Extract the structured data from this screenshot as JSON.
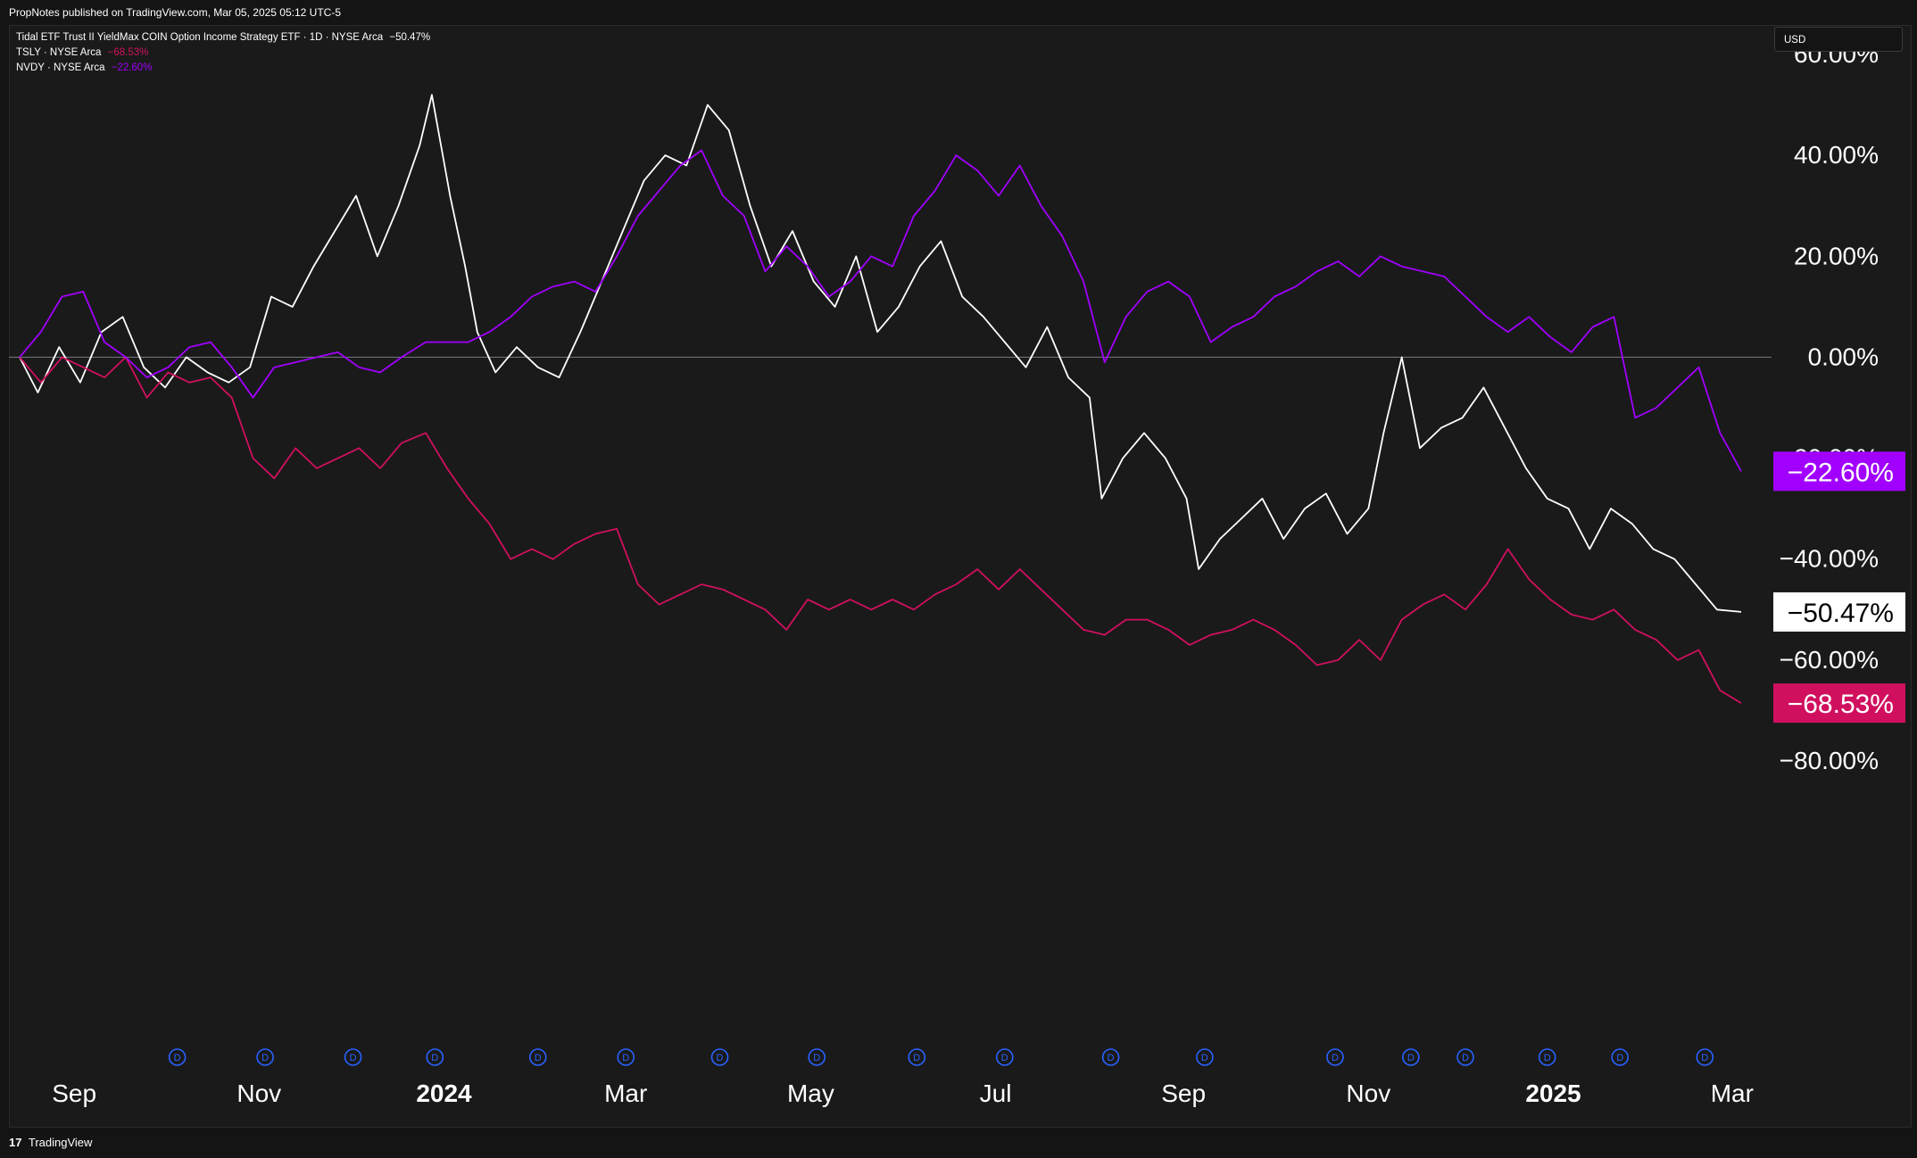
{
  "header": {
    "published_text": "PropNotes published on TradingView.com, Mar 05, 2025 05:12 UTC-5"
  },
  "legend": {
    "main": {
      "label": "Tidal ETF Trust II YieldMax COIN Option Income Strategy ETF · 1D · NYSE Arca",
      "value": "−50.47%"
    },
    "tsly": {
      "label": "TSLY · NYSE Arca",
      "value": "−68.53%"
    },
    "nvdy": {
      "label": "NVDY · NYSE Arca",
      "value": "−22.60%"
    }
  },
  "currency_button": "USD",
  "footer": {
    "logo": "17",
    "brand": "TradingView"
  },
  "colors": {
    "background": "#1a1a1a",
    "cony": "#ffffff",
    "tsly": "#d0105f",
    "nvdy": "#a100ff",
    "zero_line": "#787b86",
    "dividend_marker": "#2962ff"
  },
  "chart_data": {
    "type": "line",
    "y_unit": "percent",
    "ylim": [
      -80,
      60
    ],
    "y_ticks": [
      "60.00%",
      "40.00%",
      "20.00%",
      "0.00%",
      "−20.00%",
      "−40.00%",
      "−60.00%",
      "−80.00%"
    ],
    "y_tick_values": [
      60,
      40,
      20,
      0,
      -20,
      -40,
      -60,
      -80
    ],
    "x_ticks": [
      {
        "label": "Sep",
        "date": "2023-09-01",
        "bold": false
      },
      {
        "label": "Nov",
        "date": "2023-11-01",
        "bold": false
      },
      {
        "label": "2024",
        "date": "2024-01-01",
        "bold": true
      },
      {
        "label": "Mar",
        "date": "2024-03-01",
        "bold": false
      },
      {
        "label": "May",
        "date": "2024-05-01",
        "bold": false
      },
      {
        "label": "Jul",
        "date": "2024-07-01",
        "bold": false
      },
      {
        "label": "Sep",
        "date": "2024-09-01",
        "bold": false
      },
      {
        "label": "Nov",
        "date": "2024-11-01",
        "bold": false
      },
      {
        "label": "2025",
        "date": "2025-01-01",
        "bold": true
      },
      {
        "label": "Mar",
        "date": "2025-03-01",
        "bold": false
      }
    ],
    "xlim": [
      "2023-08-14",
      "2025-03-14"
    ],
    "grid": false,
    "series": [
      {
        "name": "COIN Option Income Strategy ETF",
        "color": "#ffffff",
        "last_value_label": "−50.47%",
        "points": [
          [
            "2023-08-14",
            0
          ],
          [
            "2023-08-20",
            -7
          ],
          [
            "2023-08-27",
            2
          ],
          [
            "2023-09-03",
            -5
          ],
          [
            "2023-09-10",
            5
          ],
          [
            "2023-09-17",
            8
          ],
          [
            "2023-09-24",
            -2
          ],
          [
            "2023-10-01",
            -6
          ],
          [
            "2023-10-08",
            0
          ],
          [
            "2023-10-15",
            -3
          ],
          [
            "2023-10-22",
            -5
          ],
          [
            "2023-10-29",
            -2
          ],
          [
            "2023-11-05",
            12
          ],
          [
            "2023-11-12",
            10
          ],
          [
            "2023-11-19",
            18
          ],
          [
            "2023-11-26",
            25
          ],
          [
            "2023-12-03",
            32
          ],
          [
            "2023-12-10",
            20
          ],
          [
            "2023-12-17",
            30
          ],
          [
            "2023-12-24",
            42
          ],
          [
            "2023-12-28",
            52
          ],
          [
            "2024-01-03",
            32
          ],
          [
            "2024-01-08",
            18
          ],
          [
            "2024-01-12",
            5
          ],
          [
            "2024-01-18",
            -3
          ],
          [
            "2024-01-25",
            2
          ],
          [
            "2024-02-01",
            -2
          ],
          [
            "2024-02-08",
            -4
          ],
          [
            "2024-02-15",
            5
          ],
          [
            "2024-02-22",
            15
          ],
          [
            "2024-02-29",
            25
          ],
          [
            "2024-03-07",
            35
          ],
          [
            "2024-03-14",
            40
          ],
          [
            "2024-03-21",
            38
          ],
          [
            "2024-03-28",
            50
          ],
          [
            "2024-04-04",
            45
          ],
          [
            "2024-04-11",
            30
          ],
          [
            "2024-04-18",
            18
          ],
          [
            "2024-04-25",
            25
          ],
          [
            "2024-05-02",
            15
          ],
          [
            "2024-05-09",
            10
          ],
          [
            "2024-05-16",
            20
          ],
          [
            "2024-05-23",
            5
          ],
          [
            "2024-05-30",
            10
          ],
          [
            "2024-06-06",
            18
          ],
          [
            "2024-06-13",
            23
          ],
          [
            "2024-06-20",
            12
          ],
          [
            "2024-06-27",
            8
          ],
          [
            "2024-07-04",
            3
          ],
          [
            "2024-07-11",
            -2
          ],
          [
            "2024-07-18",
            6
          ],
          [
            "2024-07-25",
            -4
          ],
          [
            "2024-08-01",
            -8
          ],
          [
            "2024-08-05",
            -28
          ],
          [
            "2024-08-12",
            -20
          ],
          [
            "2024-08-19",
            -15
          ],
          [
            "2024-08-26",
            -20
          ],
          [
            "2024-09-02",
            -28
          ],
          [
            "2024-09-06",
            -42
          ],
          [
            "2024-09-13",
            -36
          ],
          [
            "2024-09-20",
            -32
          ],
          [
            "2024-09-27",
            -28
          ],
          [
            "2024-10-04",
            -36
          ],
          [
            "2024-10-11",
            -30
          ],
          [
            "2024-10-18",
            -27
          ],
          [
            "2024-10-25",
            -35
          ],
          [
            "2024-11-01",
            -30
          ],
          [
            "2024-11-06",
            -15
          ],
          [
            "2024-11-12",
            0
          ],
          [
            "2024-11-18",
            -18
          ],
          [
            "2024-11-25",
            -14
          ],
          [
            "2024-12-02",
            -12
          ],
          [
            "2024-12-09",
            -6
          ],
          [
            "2024-12-16",
            -14
          ],
          [
            "2024-12-23",
            -22
          ],
          [
            "2024-12-30",
            -28
          ],
          [
            "2025-01-06",
            -30
          ],
          [
            "2025-01-13",
            -38
          ],
          [
            "2025-01-20",
            -30
          ],
          [
            "2025-01-27",
            -33
          ],
          [
            "2025-02-03",
            -38
          ],
          [
            "2025-02-10",
            -40
          ],
          [
            "2025-02-17",
            -45
          ],
          [
            "2025-02-24",
            -50
          ],
          [
            "2025-03-04",
            -50.47
          ]
        ]
      },
      {
        "name": "TSLY · NYSE Arca",
        "color": "#d0105f",
        "last_value_label": "−68.53%",
        "points": [
          [
            "2023-08-14",
            0
          ],
          [
            "2023-08-21",
            -5
          ],
          [
            "2023-08-28",
            0
          ],
          [
            "2023-09-04",
            -2
          ],
          [
            "2023-09-11",
            -4
          ],
          [
            "2023-09-18",
            0
          ],
          [
            "2023-09-25",
            -8
          ],
          [
            "2023-10-02",
            -3
          ],
          [
            "2023-10-09",
            -5
          ],
          [
            "2023-10-16",
            -4
          ],
          [
            "2023-10-23",
            -8
          ],
          [
            "2023-10-30",
            -20
          ],
          [
            "2023-11-06",
            -24
          ],
          [
            "2023-11-13",
            -18
          ],
          [
            "2023-11-20",
            -22
          ],
          [
            "2023-11-27",
            -20
          ],
          [
            "2023-12-04",
            -18
          ],
          [
            "2023-12-11",
            -22
          ],
          [
            "2023-12-18",
            -17
          ],
          [
            "2023-12-26",
            -15
          ],
          [
            "2024-01-02",
            -22
          ],
          [
            "2024-01-09",
            -28
          ],
          [
            "2024-01-16",
            -33
          ],
          [
            "2024-01-23",
            -40
          ],
          [
            "2024-01-30",
            -38
          ],
          [
            "2024-02-06",
            -40
          ],
          [
            "2024-02-13",
            -37
          ],
          [
            "2024-02-20",
            -35
          ],
          [
            "2024-02-27",
            -34
          ],
          [
            "2024-03-05",
            -45
          ],
          [
            "2024-03-12",
            -49
          ],
          [
            "2024-03-19",
            -47
          ],
          [
            "2024-03-26",
            -45
          ],
          [
            "2024-04-02",
            -46
          ],
          [
            "2024-04-09",
            -48
          ],
          [
            "2024-04-16",
            -50
          ],
          [
            "2024-04-23",
            -54
          ],
          [
            "2024-04-30",
            -48
          ],
          [
            "2024-05-07",
            -50
          ],
          [
            "2024-05-14",
            -48
          ],
          [
            "2024-05-21",
            -50
          ],
          [
            "2024-05-28",
            -48
          ],
          [
            "2024-06-04",
            -50
          ],
          [
            "2024-06-11",
            -47
          ],
          [
            "2024-06-18",
            -45
          ],
          [
            "2024-06-25",
            -42
          ],
          [
            "2024-07-02",
            -46
          ],
          [
            "2024-07-09",
            -42
          ],
          [
            "2024-07-16",
            -46
          ],
          [
            "2024-07-23",
            -50
          ],
          [
            "2024-07-30",
            -54
          ],
          [
            "2024-08-06",
            -55
          ],
          [
            "2024-08-13",
            -52
          ],
          [
            "2024-08-20",
            -52
          ],
          [
            "2024-08-27",
            -54
          ],
          [
            "2024-09-03",
            -57
          ],
          [
            "2024-09-10",
            -55
          ],
          [
            "2024-09-17",
            -54
          ],
          [
            "2024-09-24",
            -52
          ],
          [
            "2024-10-01",
            -54
          ],
          [
            "2024-10-08",
            -57
          ],
          [
            "2024-10-15",
            -61
          ],
          [
            "2024-10-22",
            -60
          ],
          [
            "2024-10-29",
            -56
          ],
          [
            "2024-11-05",
            -60
          ],
          [
            "2024-11-12",
            -52
          ],
          [
            "2024-11-19",
            -49
          ],
          [
            "2024-11-26",
            -47
          ],
          [
            "2024-12-03",
            -50
          ],
          [
            "2024-12-10",
            -45
          ],
          [
            "2024-12-17",
            -38
          ],
          [
            "2024-12-24",
            -44
          ],
          [
            "2024-12-31",
            -48
          ],
          [
            "2025-01-07",
            -51
          ],
          [
            "2025-01-14",
            -52
          ],
          [
            "2025-01-21",
            -50
          ],
          [
            "2025-01-28",
            -54
          ],
          [
            "2025-02-04",
            -56
          ],
          [
            "2025-02-11",
            -60
          ],
          [
            "2025-02-18",
            -58
          ],
          [
            "2025-02-25",
            -66
          ],
          [
            "2025-03-04",
            -68.53
          ]
        ]
      },
      {
        "name": "NVDY · NYSE Arca",
        "color": "#a100ff",
        "last_value_label": "−22.60%",
        "points": [
          [
            "2023-08-14",
            0
          ],
          [
            "2023-08-21",
            5
          ],
          [
            "2023-08-28",
            12
          ],
          [
            "2023-09-04",
            13
          ],
          [
            "2023-09-11",
            3
          ],
          [
            "2023-09-18",
            0
          ],
          [
            "2023-09-25",
            -4
          ],
          [
            "2023-10-02",
            -2
          ],
          [
            "2023-10-09",
            2
          ],
          [
            "2023-10-16",
            3
          ],
          [
            "2023-10-23",
            -2
          ],
          [
            "2023-10-30",
            -8
          ],
          [
            "2023-11-06",
            -2
          ],
          [
            "2023-11-13",
            -1
          ],
          [
            "2023-11-20",
            0
          ],
          [
            "2023-11-27",
            1
          ],
          [
            "2023-12-04",
            -2
          ],
          [
            "2023-12-11",
            -3
          ],
          [
            "2023-12-18",
            0
          ],
          [
            "2023-12-26",
            3
          ],
          [
            "2024-01-02",
            3
          ],
          [
            "2024-01-09",
            3
          ],
          [
            "2024-01-16",
            5
          ],
          [
            "2024-01-23",
            8
          ],
          [
            "2024-01-30",
            12
          ],
          [
            "2024-02-06",
            14
          ],
          [
            "2024-02-13",
            15
          ],
          [
            "2024-02-20",
            13
          ],
          [
            "2024-02-27",
            20
          ],
          [
            "2024-03-05",
            28
          ],
          [
            "2024-03-12",
            33
          ],
          [
            "2024-03-19",
            38
          ],
          [
            "2024-03-26",
            41
          ],
          [
            "2024-04-02",
            32
          ],
          [
            "2024-04-09",
            28
          ],
          [
            "2024-04-16",
            17
          ],
          [
            "2024-04-23",
            22
          ],
          [
            "2024-04-30",
            18
          ],
          [
            "2024-05-07",
            12
          ],
          [
            "2024-05-14",
            15
          ],
          [
            "2024-05-21",
            20
          ],
          [
            "2024-05-28",
            18
          ],
          [
            "2024-06-04",
            28
          ],
          [
            "2024-06-11",
            33
          ],
          [
            "2024-06-18",
            40
          ],
          [
            "2024-06-25",
            37
          ],
          [
            "2024-07-02",
            32
          ],
          [
            "2024-07-09",
            38
          ],
          [
            "2024-07-16",
            30
          ],
          [
            "2024-07-23",
            24
          ],
          [
            "2024-07-30",
            15
          ],
          [
            "2024-08-06",
            -1
          ],
          [
            "2024-08-13",
            8
          ],
          [
            "2024-08-20",
            13
          ],
          [
            "2024-08-27",
            15
          ],
          [
            "2024-09-03",
            12
          ],
          [
            "2024-09-10",
            3
          ],
          [
            "2024-09-17",
            6
          ],
          [
            "2024-09-24",
            8
          ],
          [
            "2024-10-01",
            12
          ],
          [
            "2024-10-08",
            14
          ],
          [
            "2024-10-15",
            17
          ],
          [
            "2024-10-22",
            19
          ],
          [
            "2024-10-29",
            16
          ],
          [
            "2024-11-05",
            20
          ],
          [
            "2024-11-12",
            18
          ],
          [
            "2024-11-19",
            17
          ],
          [
            "2024-11-26",
            16
          ],
          [
            "2024-12-03",
            12
          ],
          [
            "2024-12-10",
            8
          ],
          [
            "2024-12-17",
            5
          ],
          [
            "2024-12-24",
            8
          ],
          [
            "2024-12-31",
            4
          ],
          [
            "2025-01-07",
            1
          ],
          [
            "2025-01-14",
            6
          ],
          [
            "2025-01-21",
            8
          ],
          [
            "2025-01-28",
            -12
          ],
          [
            "2025-02-04",
            -10
          ],
          [
            "2025-02-11",
            -6
          ],
          [
            "2025-02-18",
            -2
          ],
          [
            "2025-02-25",
            -15
          ],
          [
            "2025-03-04",
            -22.6
          ]
        ]
      }
    ],
    "dividend_markers": {
      "label": "D",
      "dates": [
        "2023-10-05",
        "2023-11-03",
        "2023-12-02",
        "2023-12-29",
        "2024-02-01",
        "2024-03-01",
        "2024-04-01",
        "2024-05-03",
        "2024-06-05",
        "2024-07-04",
        "2024-08-08",
        "2024-09-08",
        "2024-10-21",
        "2024-11-15",
        "2024-12-03",
        "2024-12-30",
        "2025-01-23",
        "2025-02-20"
      ]
    }
  }
}
